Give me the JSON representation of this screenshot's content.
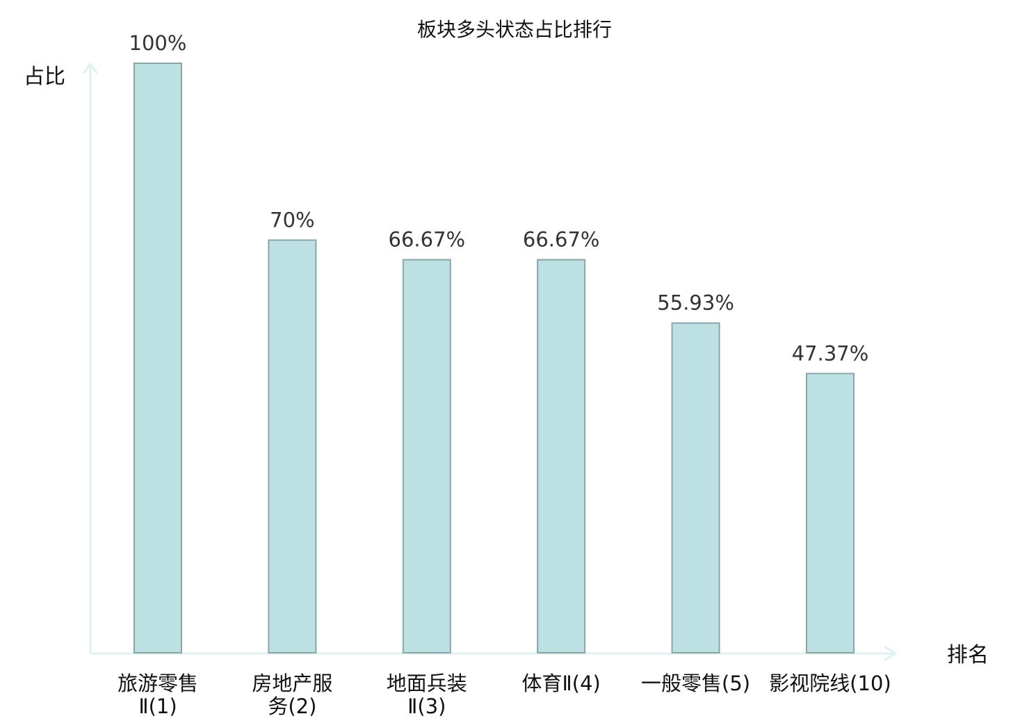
{
  "chart_data": {
    "type": "bar",
    "title": "板块多头状态占比排行",
    "xlabel": "排名",
    "ylabel": "占比",
    "ylim": [
      0,
      100
    ],
    "categories": [
      {
        "lines": [
          "旅游零售",
          "Ⅱ(1)"
        ],
        "highlight": false
      },
      {
        "lines": [
          "房地产服",
          "务(2)"
        ],
        "highlight": false
      },
      {
        "lines": [
          "地面兵装",
          "Ⅱ(3)"
        ],
        "highlight": false
      },
      {
        "lines": [
          "体育Ⅱ(4)"
        ],
        "highlight": false
      },
      {
        "lines": [
          "一般零售(5)"
        ],
        "highlight": false
      },
      {
        "lines": [
          "影视院线(10)"
        ],
        "highlight": true
      }
    ],
    "values": [
      100,
      70,
      66.67,
      66.67,
      55.93,
      47.37
    ],
    "value_labels": [
      "100%",
      "70%",
      "66.67%",
      "66.67%",
      "55.93%",
      "47.37%"
    ],
    "grid": false,
    "legend": "none",
    "colors": {
      "bar_fill": "#bde0e3",
      "bar_stroke": "#8aa5a8",
      "axis": "#e0f2ef",
      "highlight_text": "#e8201f"
    }
  }
}
